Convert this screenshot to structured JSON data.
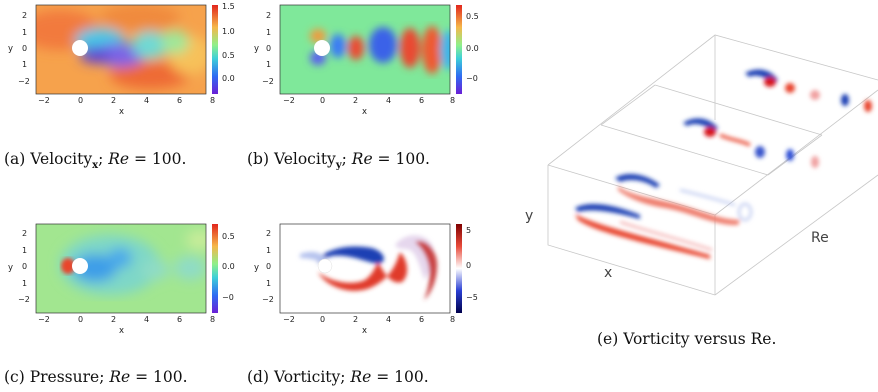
{
  "figure": {
    "panels": [
      {
        "id": "a",
        "caption_label": "(a) Velocity",
        "caption_sub": "x",
        "caption_re": "Re",
        "caption_eq": " = 100.",
        "xlabel": "x",
        "ylabel": "y",
        "xticks": [
          "−2",
          "0",
          "2",
          "4",
          "6",
          "8"
        ],
        "yticks": [
          "2",
          "1",
          "0",
          "1",
          "−2"
        ],
        "cbar_ticks": [
          "1.5",
          "1.0",
          "0.5",
          "0.0"
        ],
        "colormap": "rainbow"
      },
      {
        "id": "b",
        "caption_label": "(b) Velocity",
        "caption_sub": "y",
        "caption_re": "Re",
        "caption_eq": " = 100.",
        "xlabel": "x",
        "ylabel": "y",
        "xticks": [
          "−2",
          "0",
          "2",
          "4",
          "6",
          "8"
        ],
        "yticks": [
          "2",
          "1",
          "0",
          "1",
          "−2"
        ],
        "cbar_ticks": [
          "0.5",
          "0.0",
          "−0"
        ],
        "colormap": "rainbow"
      },
      {
        "id": "c",
        "caption_label": "(c) Pressure",
        "caption_sub": "",
        "caption_re": "Re",
        "caption_eq": " = 100.",
        "xlabel": "x",
        "ylabel": "y",
        "xticks": [
          "−2",
          "0",
          "2",
          "4",
          "6",
          "8"
        ],
        "yticks": [
          "2",
          "1",
          "0",
          "1",
          "−2"
        ],
        "cbar_ticks": [
          "0.5",
          "0.0",
          "−0"
        ],
        "colormap": "rainbow"
      },
      {
        "id": "d",
        "caption_label": "(d) Vorticity",
        "caption_sub": "",
        "caption_re": "Re",
        "caption_eq": " = 100.",
        "xlabel": "x",
        "ylabel": "y",
        "xticks": [
          "−2",
          "0",
          "2",
          "4",
          "6",
          "8"
        ],
        "yticks": [
          "2",
          "1",
          "0",
          "1",
          "−2"
        ],
        "cbar_ticks": [
          "5",
          "0",
          "−5"
        ],
        "colormap": "seismic"
      }
    ],
    "panel_e": {
      "caption_label": "(e) Vorticity versus Re.",
      "axis_x": "x",
      "axis_y": "y",
      "axis_re": "Re"
    },
    "colors": {
      "flow_red": "#e8412c",
      "flow_blue": "#2d50d6",
      "flow_green": "#6fd68b",
      "vort_red": "#d7191c",
      "vort_blue": "#1f3fb4"
    }
  }
}
